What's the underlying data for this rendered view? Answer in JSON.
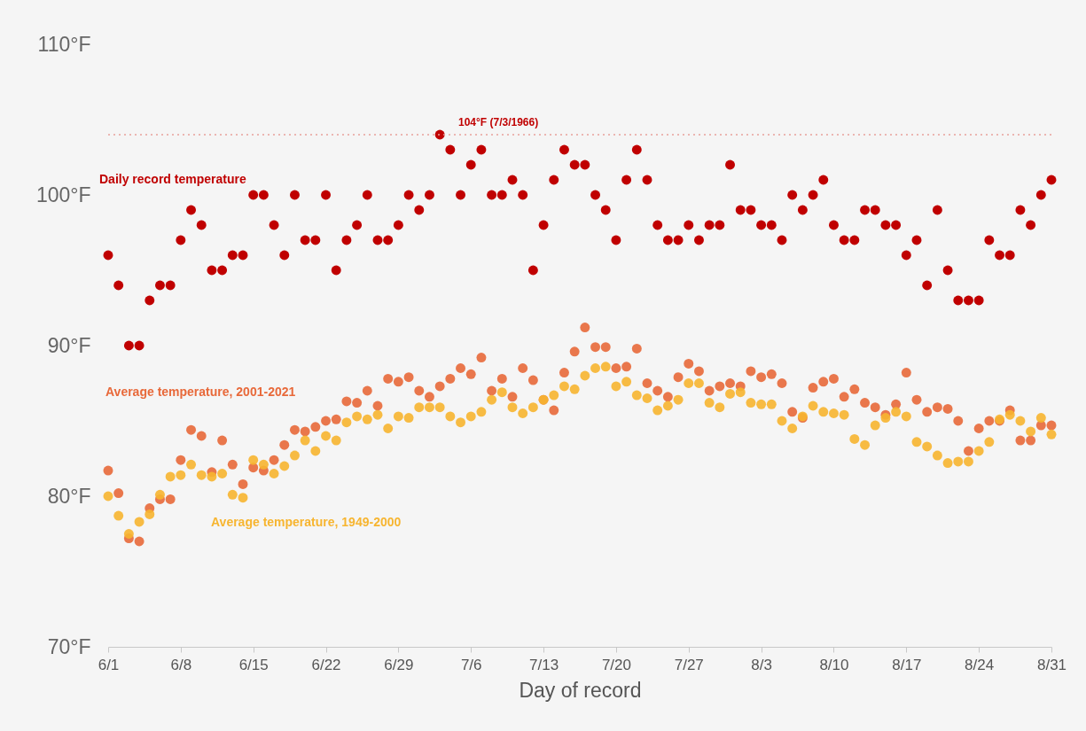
{
  "chart_data": {
    "type": "scatter",
    "xlabel": "Day of record",
    "x": [
      "--06-01",
      "--06-02",
      "--06-03",
      "--06-04",
      "--06-05",
      "--06-06",
      "--06-07",
      "--06-08",
      "--06-09",
      "--06-10",
      "--06-11",
      "--06-12",
      "--06-13",
      "--06-14",
      "--06-15",
      "--06-16",
      "--06-17",
      "--06-18",
      "--06-19",
      "--06-20",
      "--06-21",
      "--06-22",
      "--06-23",
      "--06-24",
      "--06-25",
      "--06-26",
      "--06-27",
      "--06-28",
      "--06-29",
      "--06-30",
      "--07-01",
      "--07-02",
      "--07-03",
      "--07-04",
      "--07-05",
      "--07-06",
      "--07-07",
      "--07-08",
      "--07-09",
      "--07-10",
      "--07-11",
      "--07-12",
      "--07-13",
      "--07-14",
      "--07-15",
      "--07-16",
      "--07-17",
      "--07-18",
      "--07-19",
      "--07-20",
      "--07-21",
      "--07-22",
      "--07-23",
      "--07-24",
      "--07-25",
      "--07-26",
      "--07-27",
      "--07-28",
      "--07-29",
      "--07-30",
      "--07-31",
      "--08-01",
      "--08-02",
      "--08-03",
      "--08-04",
      "--08-05",
      "--08-06",
      "--08-07",
      "--08-08",
      "--08-09",
      "--08-10",
      "--08-11",
      "--08-12",
      "--08-13",
      "--08-14",
      "--08-15",
      "--08-16",
      "--08-17",
      "--08-18",
      "--08-19",
      "--08-20",
      "--08-21",
      "--08-22",
      "--08-23",
      "--08-24",
      "--08-25",
      "--08-26",
      "--08-27",
      "--08-28",
      "--08-29",
      "--08-30",
      "--08-31"
    ],
    "series": [
      {
        "name": "Daily record temperature",
        "color": "#c00000",
        "values": [
          96,
          94,
          90,
          90,
          93,
          94,
          94,
          97,
          99,
          98,
          95,
          95,
          96,
          96,
          100,
          100,
          98,
          96,
          100,
          97,
          97,
          100,
          95,
          97,
          98,
          100,
          97,
          97,
          98,
          100,
          99,
          100,
          104,
          103,
          100,
          102,
          103,
          100,
          100,
          101,
          100,
          95,
          98,
          101,
          103,
          102,
          102,
          100,
          99,
          97,
          101,
          103,
          101,
          98,
          97,
          97,
          98,
          97,
          98,
          98,
          102,
          99,
          99,
          98,
          98,
          97,
          100,
          99,
          100,
          101,
          98,
          97,
          97,
          99,
          99,
          98,
          98,
          96,
          97,
          94,
          99,
          95,
          93,
          93,
          93,
          97,
          96,
          96,
          99,
          98,
          100,
          101
        ]
      },
      {
        "name": "Average temperature, 2001-2021",
        "color": "#e8693a",
        "values": [
          81.7,
          80.2,
          77.2,
          77.0,
          79.2,
          79.8,
          79.8,
          82.4,
          84.4,
          84.0,
          81.6,
          83.7,
          82.1,
          80.8,
          81.9,
          81.7,
          82.4,
          83.4,
          84.4,
          84.3,
          84.6,
          85.0,
          85.1,
          86.3,
          86.2,
          87.0,
          86.0,
          87.8,
          87.6,
          87.9,
          87.0,
          86.6,
          87.3,
          87.8,
          88.5,
          88.1,
          89.2,
          87.0,
          87.8,
          86.6,
          88.5,
          87.7,
          86.4,
          85.7,
          88.2,
          89.6,
          91.2,
          89.9,
          89.9,
          88.5,
          88.6,
          89.8,
          87.5,
          87.0,
          86.6,
          87.9,
          88.8,
          88.3,
          87.0,
          87.3,
          87.5,
          87.3,
          88.3,
          87.9,
          88.1,
          87.5,
          85.6,
          85.2,
          87.2,
          87.6,
          87.8,
          86.6,
          87.1,
          86.2,
          85.9,
          85.4,
          86.1,
          88.2,
          86.4,
          85.6,
          85.9,
          85.8,
          85.0,
          83.0,
          84.5,
          85.0,
          85.0,
          85.7,
          83.7,
          83.7,
          84.7,
          84.7
        ]
      },
      {
        "name": "Average temperature, 1949-2000",
        "color": "#f7b530",
        "values": [
          80.0,
          78.7,
          77.5,
          78.3,
          78.8,
          80.1,
          81.3,
          81.4,
          82.1,
          81.4,
          81.3,
          81.5,
          80.1,
          79.9,
          82.4,
          82.1,
          81.5,
          82.0,
          82.7,
          83.7,
          83.0,
          84.0,
          83.7,
          84.9,
          85.3,
          85.1,
          85.4,
          84.5,
          85.3,
          85.2,
          85.9,
          85.9,
          85.9,
          85.3,
          84.9,
          85.3,
          85.6,
          86.4,
          86.9,
          85.9,
          85.5,
          85.9,
          86.4,
          86.7,
          87.3,
          87.1,
          88.0,
          88.5,
          88.6,
          87.3,
          87.6,
          86.7,
          86.5,
          85.7,
          86.0,
          86.4,
          87.5,
          87.5,
          86.2,
          85.9,
          86.8,
          86.9,
          86.2,
          86.1,
          86.1,
          85.0,
          84.5,
          85.3,
          86.0,
          85.6,
          85.5,
          85.4,
          83.8,
          83.4,
          84.7,
          85.2,
          85.6,
          85.3,
          83.6,
          83.3,
          82.7,
          82.2,
          82.3,
          82.3,
          83.0,
          83.6,
          85.1,
          85.4,
          85.0,
          84.3,
          85.2,
          84.1
        ]
      }
    ],
    "xlim": [
      "--06-01",
      "--08-31"
    ],
    "xticks": [
      {
        "value": "--06-01",
        "label": "6/1"
      },
      {
        "value": "--06-08",
        "label": "6/8"
      },
      {
        "value": "--06-15",
        "label": "6/15"
      },
      {
        "value": "--06-22",
        "label": "6/22"
      },
      {
        "value": "--06-29",
        "label": "6/29"
      },
      {
        "value": "--07-06",
        "label": "7/6"
      },
      {
        "value": "--07-13",
        "label": "7/13"
      },
      {
        "value": "--07-20",
        "label": "7/20"
      },
      {
        "value": "--07-27",
        "label": "7/27"
      },
      {
        "value": "--08-03",
        "label": "8/3"
      },
      {
        "value": "--08-10",
        "label": "8/10"
      },
      {
        "value": "--08-17",
        "label": "8/17"
      },
      {
        "value": "--08-24",
        "label": "8/24"
      },
      {
        "value": "--08-31",
        "label": "8/31"
      }
    ],
    "ylim": [
      70,
      110
    ],
    "yticks": [
      {
        "value": 70,
        "label": "70°F"
      },
      {
        "value": 80,
        "label": "80°F"
      },
      {
        "value": 90,
        "label": "90°F"
      },
      {
        "value": 100,
        "label": "100°F"
      },
      {
        "value": 110,
        "label": "110°F"
      }
    ],
    "ref_lines": [
      {
        "axis": "y",
        "value": 104,
        "label": "104°F (7/3/1966)",
        "color": "#e8a09a",
        "line_style": "dotted"
      }
    ],
    "grid": false,
    "marker": "circle"
  }
}
